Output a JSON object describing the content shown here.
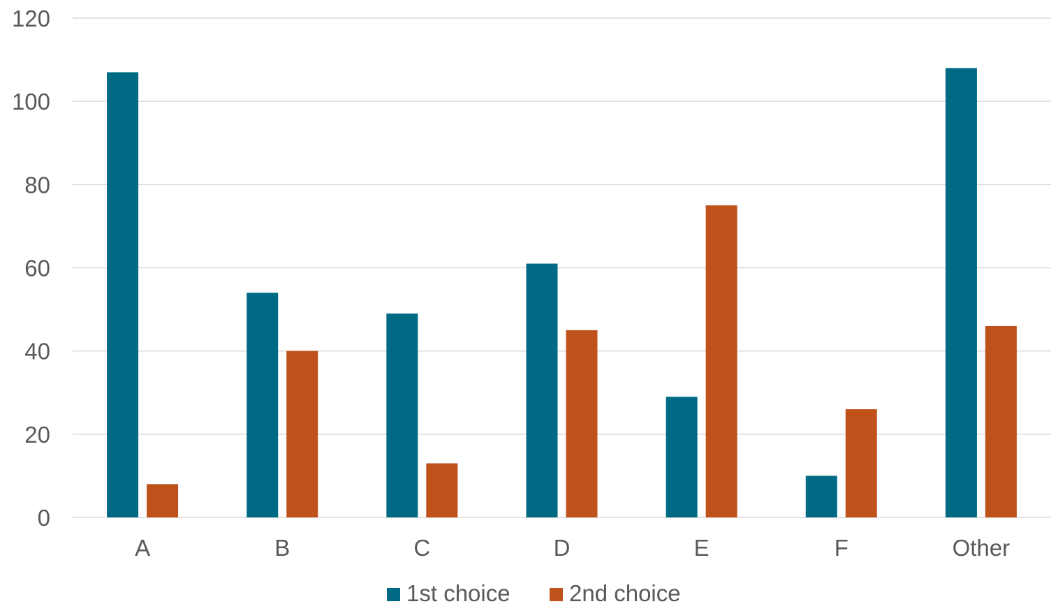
{
  "colors": {
    "series_1": "#006a84",
    "series_2": "#bf511b",
    "gridline": "#d9d9d9",
    "text": "#595959"
  },
  "chart_data": {
    "type": "bar",
    "title": "",
    "xlabel": "",
    "ylabel": "",
    "categories": [
      "A",
      "B",
      "C",
      "D",
      "E",
      "F",
      "Other"
    ],
    "series": [
      {
        "name": "1st choice",
        "values": [
          107,
          54,
          49,
          61,
          29,
          10,
          108
        ]
      },
      {
        "name": "2nd choice",
        "values": [
          8,
          40,
          13,
          45,
          75,
          26,
          46
        ]
      }
    ],
    "ylim": [
      0,
      120
    ],
    "yticks": [
      0,
      20,
      40,
      60,
      80,
      100,
      120
    ],
    "grid": true,
    "legend_position": "bottom-center"
  }
}
